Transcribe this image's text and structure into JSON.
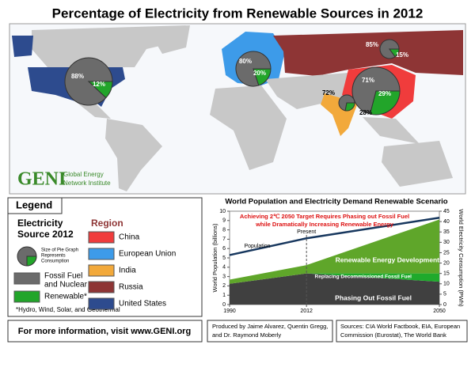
{
  "title": "Percentage of Electricity from Renewable Sources in 2012",
  "logo": {
    "mark": "GENI",
    "name": [
      "Global Energy",
      "Network Institute"
    ]
  },
  "legend": {
    "title": "Legend",
    "pie_title": [
      "Electricity",
      "Source 2012"
    ],
    "pie_note": [
      "Size of Pie Graph",
      "Represents",
      "Consumption"
    ],
    "items": [
      {
        "label": [
          "Fossil Fuel",
          "and Nuclear"
        ],
        "color": "#6b6b6b"
      },
      {
        "label": [
          "Renewable*"
        ],
        "color": "#22a52a"
      }
    ],
    "region_title": "Region",
    "regions": [
      {
        "label": "China",
        "color": "#f03c3c"
      },
      {
        "label": "European Union",
        "color": "#3d9be9"
      },
      {
        "label": "India",
        "color": "#f2a93b"
      },
      {
        "label": "Russia",
        "color": "#8e3535"
      },
      {
        "label": "United States",
        "color": "#2d4b8e"
      }
    ],
    "footnote": "*Hydro, Wind, Solar, and Geothermal"
  },
  "map": {
    "pies": [
      {
        "values": [
          71,
          29
        ],
        "value_labels": [
          "71%",
          "29%"
        ]
      },
      {
        "values": [
          80,
          20
        ],
        "value_labels": [
          "80%",
          "20%"
        ]
      },
      {
        "values": [
          72,
          28
        ],
        "value_labels": [
          "72%",
          "28%"
        ]
      },
      {
        "values": [
          85,
          15
        ],
        "value_labels": [
          "85%",
          "15%"
        ]
      },
      {
        "values": [
          88,
          12
        ],
        "value_labels": [
          "88%",
          "12%"
        ]
      }
    ]
  },
  "footer": {
    "info": "For more information, visit www.GENI.org",
    "produced": [
      "Produced by Jaime Alvarez, Quentin Gregg,",
      "and Dr. Raymond Moberly"
    ],
    "sources": [
      "Sources: CIA World Factbook, EIA, European",
      "Commission (Eurostat), The World Bank"
    ]
  },
  "chart_data": {
    "type": "area",
    "title": "World Population and Electricity Demand Renewable Scenario",
    "subtitle": [
      "Achieving 2℃ 2050 Target Requires Phasing out Fossil Fuel",
      "while Dramatically Increasing Renewable Energy"
    ],
    "x": [
      1990,
      2012,
      2050
    ],
    "xlim": [
      1990,
      2050
    ],
    "xticks": [
      1990,
      2012,
      2050
    ],
    "ylim": [
      0,
      10
    ],
    "yticks": [
      0,
      1,
      2,
      3,
      4,
      5,
      6,
      7,
      8,
      9,
      10
    ],
    "y2lim": [
      0,
      45
    ],
    "y2ticks": [
      0,
      5,
      10,
      15,
      20,
      25,
      30,
      35,
      40,
      45
    ],
    "ylabel": "World Population (billions)",
    "y2label": "World Electricity Consumption (PWh)",
    "annotation": {
      "text": "Present",
      "x": 2012
    },
    "series": [
      {
        "name": "Phasing Out Fossil Fuel",
        "color": "#404040",
        "values": [
          10,
          15,
          11
        ],
        "axis": "y2"
      },
      {
        "name": "Replacing Decommissioned Fossil Fuel",
        "color": "#1faa2c",
        "values": [
          0,
          0,
          4
        ],
        "axis": "y2"
      },
      {
        "name": "Renewable Energy Development",
        "color": "#5fa62a",
        "values": [
          2,
          4,
          26
        ],
        "axis": "y2"
      },
      {
        "name": "Population",
        "color": "#17375e",
        "values": [
          5.3,
          7.1,
          9.3
        ],
        "type": "line"
      }
    ]
  }
}
